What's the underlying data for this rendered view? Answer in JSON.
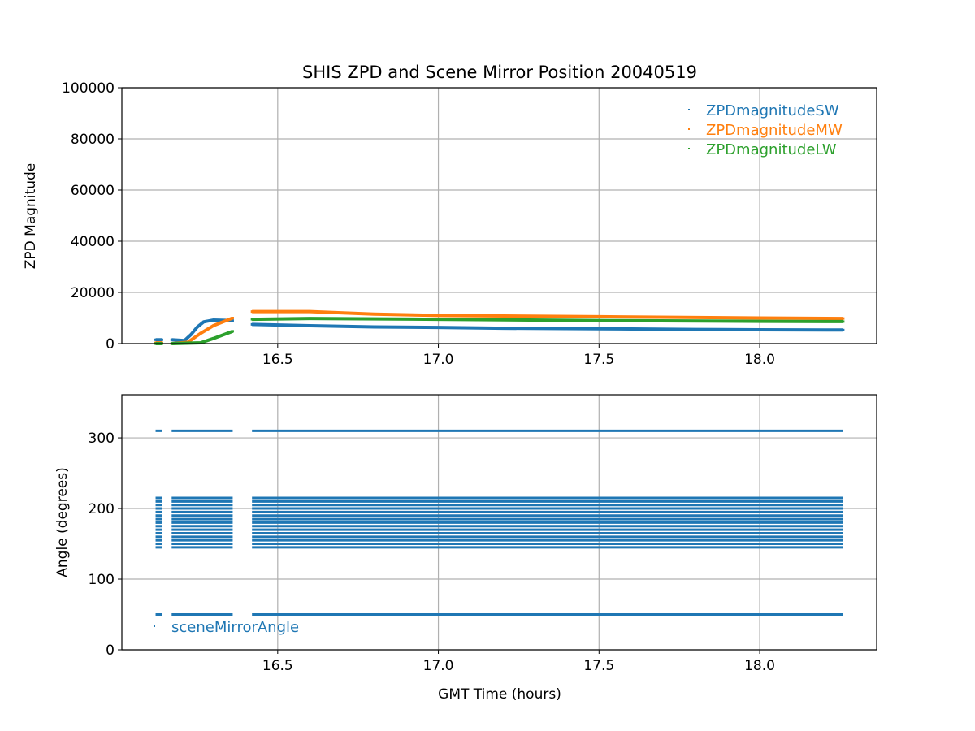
{
  "chart_data": [
    {
      "type": "scatter",
      "title": "SHIS ZPD and Scene Mirror Position 20040519",
      "xlabel": "",
      "ylabel": "ZPD Magnitude",
      "xlim": [
        16.015,
        18.364
      ],
      "ylim": [
        0,
        100000
      ],
      "xticks": [
        "16.5",
        "17.0",
        "17.5",
        "18.0"
      ],
      "xtick_values": [
        16.5,
        17.0,
        17.5,
        18.0
      ],
      "yticks": [
        "0",
        "20000",
        "40000",
        "60000",
        "80000",
        "100000"
      ],
      "ytick_values": [
        0,
        20000,
        40000,
        60000,
        80000,
        100000
      ],
      "grid": true,
      "legend": "top-right",
      "series": [
        {
          "name": "ZPDmagnitudeSW",
          "color": "#1f77b4",
          "segments": [
            [
              [
                16.12,
                1500
              ],
              [
                16.14,
                1500
              ]
            ],
            [
              [
                16.17,
                1500
              ],
              [
                16.21,
                1200
              ],
              [
                16.23,
                3500
              ],
              [
                16.25,
                6500
              ],
              [
                16.27,
                8500
              ],
              [
                16.3,
                9200
              ],
              [
                16.36,
                9000
              ]
            ],
            [
              [
                16.42,
                7500
              ],
              [
                16.6,
                7000
              ],
              [
                16.8,
                6500
              ],
              [
                17.0,
                6300
              ],
              [
                17.2,
                6000
              ],
              [
                17.5,
                5800
              ],
              [
                17.8,
                5500
              ],
              [
                18.0,
                5400
              ],
              [
                18.26,
                5300
              ]
            ]
          ]
        },
        {
          "name": "ZPDmagnitudeMW",
          "color": "#ff7f0e",
          "segments": [
            [
              [
                16.12,
                300
              ],
              [
                16.14,
                300
              ]
            ],
            [
              [
                16.17,
                0
              ],
              [
                16.22,
                500
              ],
              [
                16.26,
                4000
              ],
              [
                16.3,
                7000
              ],
              [
                16.36,
                10000
              ]
            ],
            [
              [
                16.42,
                12500
              ],
              [
                16.6,
                12500
              ],
              [
                16.8,
                11500
              ],
              [
                17.0,
                11000
              ],
              [
                17.5,
                10500
              ],
              [
                18.0,
                10000
              ],
              [
                18.26,
                9800
              ]
            ]
          ]
        },
        {
          "name": "ZPDmagnitudeLW",
          "color": "#2ca02c",
          "segments": [
            [
              [
                16.12,
                0
              ],
              [
                16.14,
                0
              ]
            ],
            [
              [
                16.17,
                0
              ],
              [
                16.26,
                300
              ],
              [
                16.3,
                2000
              ],
              [
                16.36,
                4800
              ]
            ],
            [
              [
                16.42,
                9500
              ],
              [
                16.6,
                9800
              ],
              [
                17.0,
                9500
              ],
              [
                17.5,
                9000
              ],
              [
                18.0,
                8700
              ],
              [
                18.26,
                8600
              ]
            ]
          ]
        }
      ]
    },
    {
      "type": "scatter",
      "xlabel": "GMT Time (hours)",
      "ylabel": "Angle (degrees)",
      "xlim": [
        16.015,
        18.364
      ],
      "ylim": [
        0,
        361
      ],
      "xticks": [
        "16.5",
        "17.0",
        "17.5",
        "18.0"
      ],
      "xtick_values": [
        16.5,
        17.0,
        17.5,
        18.0
      ],
      "yticks": [
        "0",
        "100",
        "200",
        "300"
      ],
      "ytick_values": [
        0,
        100,
        200,
        300
      ],
      "grid": true,
      "legend": "bottom-left",
      "series": [
        {
          "name": "sceneMirrorAngle",
          "color": "#1f77b4",
          "time_ranges": [
            [
              16.12,
              16.14
            ],
            [
              16.17,
              16.36
            ],
            [
              16.42,
              18.26
            ]
          ],
          "angles": [
            50,
            145,
            150,
            155,
            160,
            165,
            170,
            175,
            180,
            185,
            190,
            195,
            200,
            205,
            210,
            215,
            310
          ]
        }
      ]
    }
  ]
}
